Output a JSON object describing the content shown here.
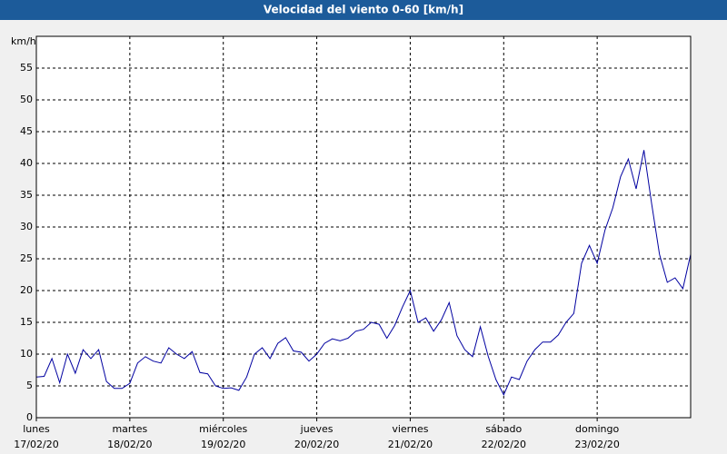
{
  "chart_data": {
    "type": "line",
    "title": "Velocidad del viento 0-60 [km/h]",
    "y_label": "km/h",
    "x": [
      0,
      2,
      4,
      6,
      8,
      10,
      12,
      14,
      16,
      18,
      20,
      22,
      24,
      26,
      28,
      30,
      32,
      34,
      36,
      38,
      40,
      42,
      44,
      46,
      48,
      50,
      52,
      54,
      56,
      58,
      60,
      62,
      64,
      66,
      68,
      70,
      72,
      74,
      76,
      78,
      80,
      82,
      84,
      86,
      88,
      90,
      92,
      94,
      96,
      98,
      100,
      102,
      104,
      106,
      108,
      110,
      112,
      114,
      116,
      118,
      120,
      122,
      124,
      126,
      128,
      130,
      132,
      134,
      136,
      138,
      140,
      142,
      144,
      146,
      148,
      150,
      152,
      154,
      156,
      158,
      160,
      162,
      164,
      166,
      168
    ],
    "series": [
      {
        "color": "#0000a0",
        "values": [
          6.4,
          6.5,
          9.3,
          5.5,
          10,
          7,
          10.7,
          9.3,
          10.7,
          5.7,
          4.6,
          4.6,
          5.4,
          8.6,
          9.6,
          8.9,
          8.6,
          11,
          10,
          9.3,
          10.4,
          7.1,
          6.9,
          5,
          4.6,
          4.7,
          4.3,
          6.4,
          10,
          11,
          9.3,
          11.7,
          12.6,
          10.5,
          10.3,
          8.9,
          10,
          11.7,
          12.4,
          12.1,
          12.5,
          13.6,
          13.9,
          15,
          14.7,
          12.5,
          14.5,
          17.4,
          20,
          15,
          15.7,
          13.6,
          15.4,
          18.1,
          12.9,
          10.7,
          9.6,
          14.3,
          9.7,
          6,
          3.6,
          6.4,
          6,
          8.9,
          10.7,
          11.9,
          11.9,
          13,
          15,
          16.4,
          24.3,
          27.1,
          24.3,
          29.5,
          33,
          37.9,
          40.7,
          36,
          42.1,
          33.6,
          25.7,
          21.3,
          22,
          20.3,
          25.7
        ]
      }
    ],
    "xlim": [
      0,
      168
    ],
    "xticks": [
      {
        "value": 0,
        "label": [
          "lunes",
          "17/02/20"
        ]
      },
      {
        "value": 24,
        "label": [
          "martes",
          "18/02/20"
        ]
      },
      {
        "value": 48,
        "label": [
          "miércoles",
          "19/02/20"
        ]
      },
      {
        "value": 72,
        "label": [
          "jueves",
          "20/02/20"
        ]
      },
      {
        "value": 96,
        "label": [
          "viernes",
          "21/02/20"
        ]
      },
      {
        "value": 120,
        "label": [
          "sábado",
          "22/02/20"
        ]
      },
      {
        "value": 144,
        "label": [
          "domingo",
          "23/02/20"
        ]
      }
    ],
    "ylim": [
      0,
      60
    ],
    "yticks": [
      0,
      5,
      10,
      15,
      20,
      25,
      30,
      35,
      40,
      45,
      50,
      55
    ],
    "grid": true
  }
}
